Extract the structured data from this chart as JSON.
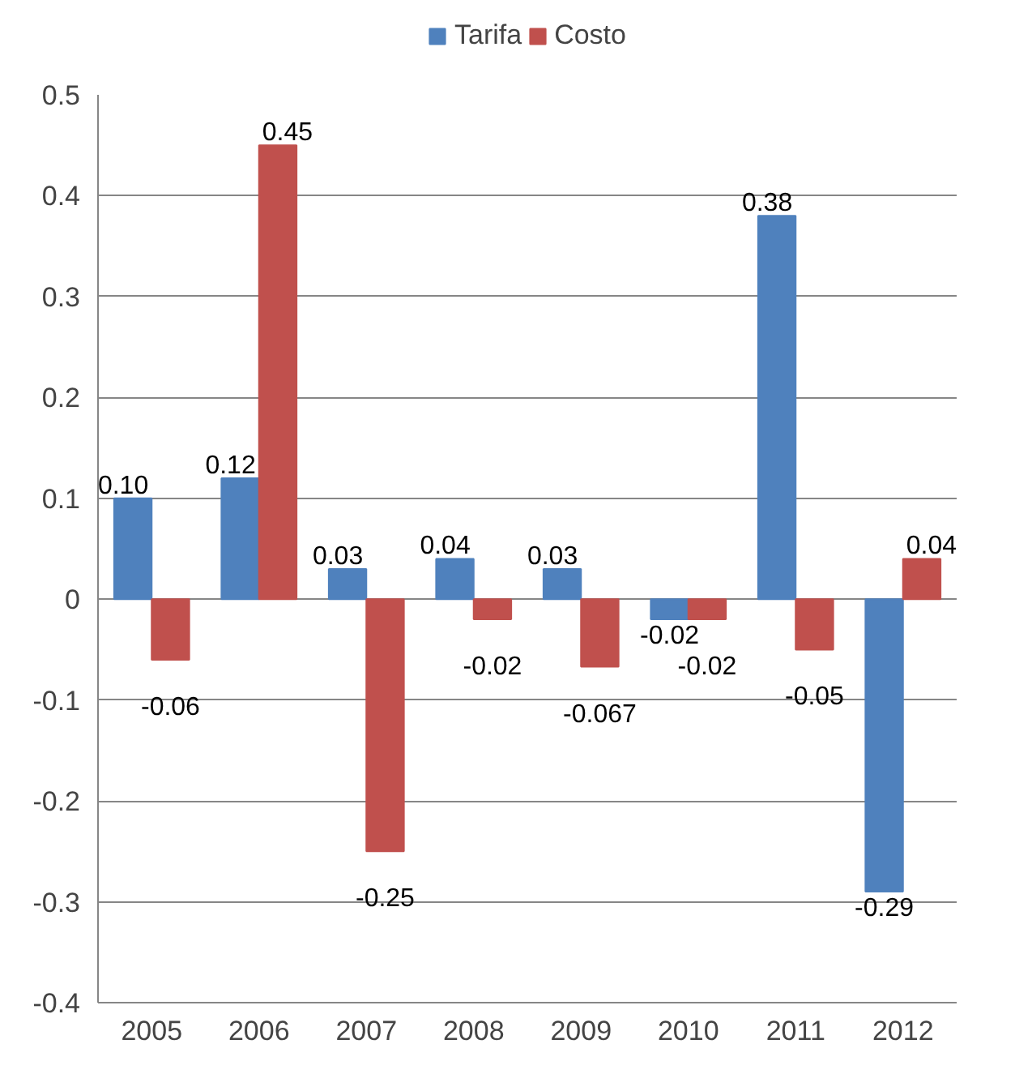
{
  "chart_data": {
    "type": "bar",
    "categories": [
      "2005",
      "2006",
      "2007",
      "2008",
      "2009",
      "2010",
      "2011",
      "2012"
    ],
    "series": [
      {
        "name": "Tarifa",
        "color": "#4f81bd",
        "values": [
          0.1,
          0.12,
          0.03,
          0.04,
          0.03,
          -0.02,
          0.38,
          -0.29
        ],
        "value_labels": [
          "0.10",
          "0.12",
          "0.03",
          "0.04",
          "0.03",
          "-0.02",
          "0.38",
          "-0.29"
        ]
      },
      {
        "name": "Costo",
        "color": "#c0504d",
        "values": [
          -0.06,
          0.45,
          -0.25,
          -0.02,
          -0.067,
          -0.02,
          -0.05,
          0.04
        ],
        "value_labels": [
          "-0.06",
          "0.45",
          "-0.25",
          "-0.02",
          "-0.067",
          "-0.02",
          "-0.05",
          "0.04"
        ]
      }
    ],
    "ylim": [
      -0.4,
      0.5
    ],
    "yticks": [
      -0.4,
      -0.3,
      -0.2,
      -0.1,
      0,
      0.1,
      0.2,
      0.3,
      0.4,
      0.5
    ],
    "grid": "y",
    "legend": "top"
  }
}
